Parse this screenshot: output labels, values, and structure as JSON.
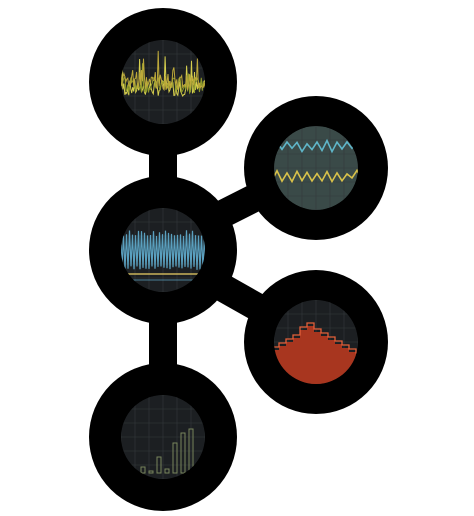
{
  "logo": {
    "icon": "network-of-chart-thumbnails-logo",
    "ring_color": "#000000",
    "panel_color": "#1c1f22",
    "grid_color": "#343a3c",
    "nodes": [
      {
        "id": "top",
        "chart": "spiky-line",
        "series_colors": [
          "#d6cf4e",
          "#8f9a2a",
          "#bca83a"
        ]
      },
      {
        "id": "upper-right",
        "chart": "dual-line",
        "series_colors": [
          "#5fb6c9",
          "#d9c24a"
        ],
        "panel_color": "#3a4a48"
      },
      {
        "id": "center",
        "chart": "oscillating-line",
        "series_colors": [
          "#5aa0bf",
          "#c9b45a"
        ]
      },
      {
        "id": "lower-right",
        "chart": "step-area",
        "series_colors": [
          "#a8361f",
          "#e3603a"
        ]
      },
      {
        "id": "bottom",
        "chart": "bars",
        "series_colors": [
          "#78855c"
        ]
      }
    ]
  }
}
